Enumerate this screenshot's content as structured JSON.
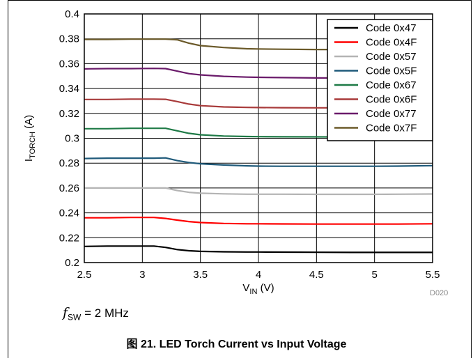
{
  "chart_data": {
    "type": "line",
    "xlabel_main": "V",
    "xlabel_sub": "IN",
    "xlabel_unit": " (V)",
    "ylabel_main": "I",
    "ylabel_sub": "TORCH",
    "ylabel_unit": " (A)",
    "xlim": [
      2.5,
      5.5
    ],
    "ylim": [
      0.2,
      0.4
    ],
    "xticks": [
      "2.5",
      "3",
      "3.5",
      "4",
      "4.5",
      "5",
      "5.5"
    ],
    "yticks": [
      "0.2",
      "0.22",
      "0.24",
      "0.26",
      "0.28",
      "0.3",
      "0.32",
      "0.34",
      "0.36",
      "0.38",
      "0.4"
    ],
    "grid": true,
    "legend_position": "top-right",
    "x": [
      2.5,
      2.7,
      2.9,
      3.1,
      3.2,
      3.3,
      3.4,
      3.5,
      3.7,
      3.9,
      4.0,
      4.2,
      4.5,
      4.8,
      5.0,
      5.2,
      5.5
    ],
    "series": [
      {
        "name": "Code 0x47",
        "color": "#000000",
        "values": [
          0.213,
          0.2133,
          0.2133,
          0.2133,
          0.2122,
          0.2105,
          0.2095,
          0.209,
          0.2087,
          0.2085,
          0.2085,
          0.2084,
          0.2083,
          0.2082,
          0.2082,
          0.2082,
          0.2082
        ]
      },
      {
        "name": "Code 0x4F",
        "color": "#ff0000",
        "values": [
          0.236,
          0.236,
          0.2363,
          0.2363,
          0.2355,
          0.2342,
          0.233,
          0.2322,
          0.2315,
          0.2312,
          0.2312,
          0.2311,
          0.231,
          0.231,
          0.231,
          0.231,
          0.2312
        ]
      },
      {
        "name": "Code 0x57",
        "color": "#b4b4b4",
        "values": [
          0.26,
          0.26,
          0.26,
          0.26,
          0.26,
          0.258,
          0.2565,
          0.2558,
          0.2553,
          0.255,
          0.255,
          0.255,
          0.2549,
          0.2549,
          0.2549,
          0.255,
          0.2552
        ]
      },
      {
        "name": "Code 0x5F",
        "color": "#1f5a7a",
        "values": [
          0.2837,
          0.284,
          0.284,
          0.284,
          0.2842,
          0.282,
          0.2805,
          0.2795,
          0.2785,
          0.2778,
          0.2776,
          0.2775,
          0.2775,
          0.2775,
          0.2775,
          0.2776,
          0.278
        ]
      },
      {
        "name": "Code 0x67",
        "color": "#1e7a46",
        "values": [
          0.3077,
          0.3077,
          0.308,
          0.308,
          0.308,
          0.306,
          0.304,
          0.3028,
          0.3018,
          0.3014,
          0.3013,
          0.3012,
          0.3011,
          0.301,
          0.301,
          0.301,
          0.301
        ]
      },
      {
        "name": "Code 0x6F",
        "color": "#a83a3a",
        "values": [
          0.3312,
          0.3312,
          0.3315,
          0.3315,
          0.3313,
          0.3295,
          0.3275,
          0.3262,
          0.3252,
          0.3248,
          0.3247,
          0.3246,
          0.3245,
          0.3245,
          0.3245,
          0.3245,
          0.3246
        ]
      },
      {
        "name": "Code 0x77",
        "color": "#6a1a6a",
        "values": [
          0.3558,
          0.356,
          0.356,
          0.3562,
          0.356,
          0.354,
          0.352,
          0.351,
          0.3498,
          0.3492,
          0.349,
          0.3488,
          0.3485,
          0.3484,
          0.3484,
          0.3484,
          0.3485
        ]
      },
      {
        "name": "Code 0x7F",
        "color": "#6b5a2a",
        "values": [
          0.3795,
          0.3795,
          0.3797,
          0.3797,
          0.3797,
          0.3792,
          0.3765,
          0.3745,
          0.373,
          0.372,
          0.3718,
          0.3716,
          0.3714,
          0.3714,
          0.3714,
          0.3714,
          0.3714
        ]
      }
    ]
  },
  "fsw": {
    "symbol": "f",
    "sub": "SW",
    "text": " = 2 MHz"
  },
  "figure_code": "D020",
  "caption": "图 21. LED Torch Current vs Input Voltage"
}
